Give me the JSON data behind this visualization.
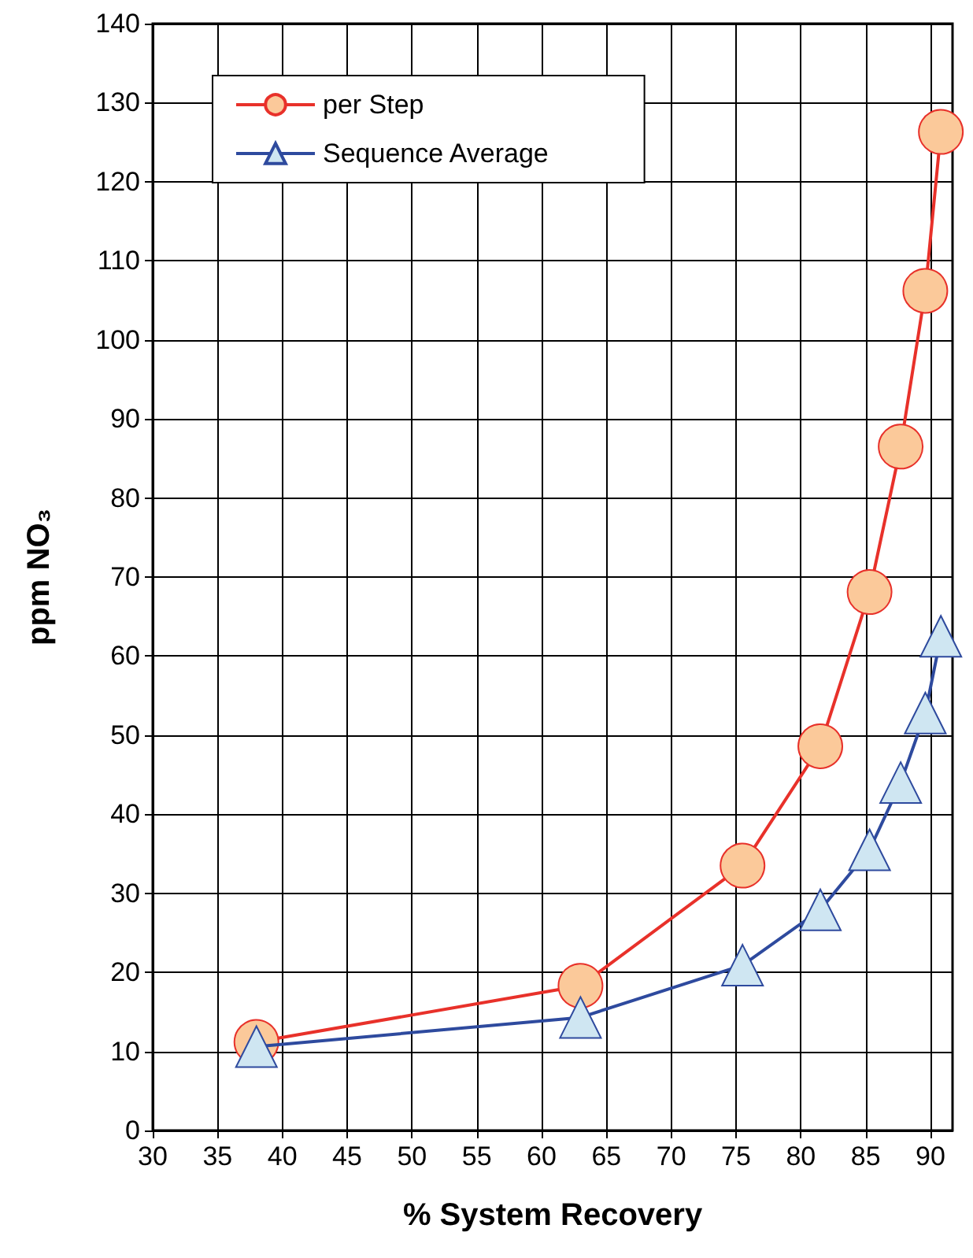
{
  "chart_data": {
    "type": "line",
    "xlabel": "% System Recovery",
    "ylabel": "ppm NO₃",
    "xlim": [
      30,
      91.7
    ],
    "xticks": [
      30,
      35,
      40,
      45,
      50,
      55,
      60,
      65,
      70,
      75,
      80,
      85,
      90
    ],
    "ylim": [
      0,
      140
    ],
    "yticks": [
      0,
      10,
      20,
      30,
      40,
      50,
      60,
      70,
      80,
      90,
      100,
      110,
      120,
      130,
      140
    ],
    "grid": true,
    "legend": "top left",
    "series": [
      {
        "name": "per Step",
        "color": "#e8312a",
        "marker": "circle",
        "x": [
          38,
          63,
          75.5,
          81.5,
          85.3,
          87.7,
          89.6,
          90.8
        ],
        "values": [
          11.2,
          18.3,
          33.5,
          48.6,
          68.1,
          86.5,
          106.2,
          126.3
        ]
      },
      {
        "name": "Sequence Average",
        "color": "#2e4a9e",
        "marker": "triangle",
        "x": [
          38,
          63,
          75.5,
          81.5,
          85.3,
          87.7,
          89.6,
          90.8
        ],
        "values": [
          10.6,
          14.3,
          20.9,
          27.9,
          35.5,
          44,
          52.8,
          62.5
        ]
      }
    ]
  }
}
